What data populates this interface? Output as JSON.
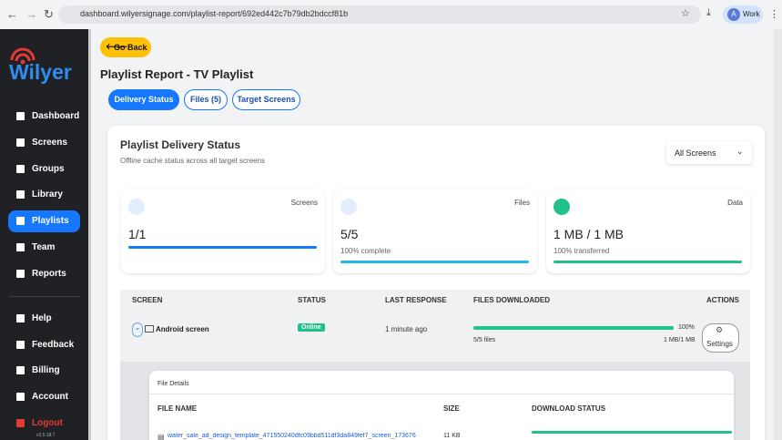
{
  "browser": {
    "url": "dashboard.wilyersignage.com/playlist-report/692ed442c7b79db2bdccf81b",
    "avatar": "A",
    "profile": "Work"
  },
  "sidebar": {
    "logo": "Wilyer",
    "nav": [
      "Dashboard",
      "Screens",
      "Groups",
      "Library",
      "Playlists",
      "Team",
      "Reports"
    ],
    "active": "Playlists",
    "nav_bottom": [
      "Help",
      "Feedback",
      "Billing",
      "Account",
      "Logout"
    ],
    "version": "v3.5.18.7"
  },
  "header": {
    "back": "Go Back",
    "title": "Playlist Report - TV Playlist"
  },
  "tabs": [
    "Delivery Status",
    "Files (5)",
    "Target Screens"
  ],
  "panel": {
    "title": "Playlist Delivery Status",
    "subtitle": "Offline cache status across all target screens",
    "filter": "All Screens"
  },
  "stats": [
    {
      "label": "Screens",
      "value": "1/1"
    },
    {
      "label": "Files",
      "value": "5/5",
      "note": "100% complete"
    },
    {
      "label": "Data",
      "value": "1 MB / 1 MB",
      "note": "100% transferred"
    }
  ],
  "table": {
    "headers": [
      "SCREEN",
      "STATUS",
      "LAST RESPONSE",
      "FILES DOWNLOADED",
      "ACTIONS"
    ],
    "rows": [
      {
        "screen": "Android screen",
        "status": "Online",
        "last_response": "1 minute ago",
        "percent": "100%",
        "files": "5/5 files",
        "size": "1 MB/1 MB",
        "action": "Settings"
      }
    ]
  },
  "file_details": {
    "title": "File Details",
    "headers": [
      "FILE NAME",
      "SIZE",
      "DOWNLOAD STATUS"
    ],
    "rows": [
      {
        "name": "water_sale_ad_design_template_471550240dfc09bbd511df3da849fef7_screen_173676",
        "size": "11 KB"
      }
    ]
  }
}
